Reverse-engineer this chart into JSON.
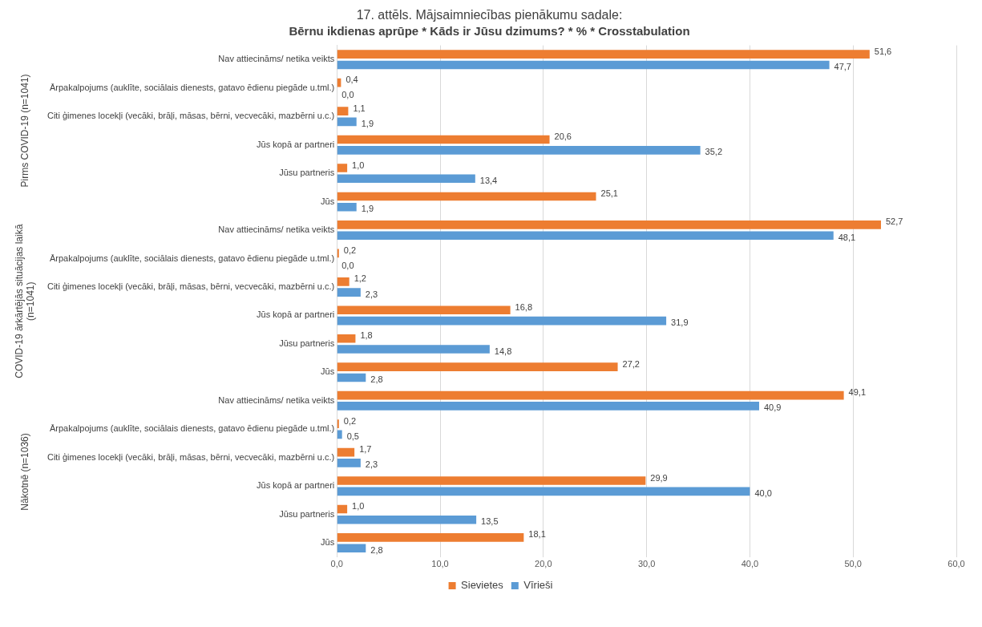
{
  "chart_data": {
    "type": "bar",
    "orientation": "horizontal",
    "title": "17. attēls. Mājsaimniecības pienākumu sadale:",
    "subtitle": "Bērnu ikdienas aprūpe * Kāds ir Jūsu dzimums? * % * Crosstabulation",
    "categories": [
      "Nav attiecināms/ netika veikts",
      "Ārpakalpojums (auklīte, sociālais dienests, gatavo ēdienu piegāde u.tml.)",
      "Citi ģimenes locekļi (vecāki, brāļi, māsas, bērni, vecvecāki, mazbērni u.c.)",
      "Jūs kopā ar partneri",
      "Jūsu partneris",
      "Jūs",
      "Nav attiecināms/ netika veikts",
      "Ārpakalpojums (auklīte, sociālais dienests, gatavo ēdienu piegāde u.tml.)",
      "Citi ģimenes locekļi (vecāki, brāļi, māsas, bērni, vecvecāki, mazbērni u.c.)",
      "Jūs kopā ar partneri",
      "Jūsu partneris",
      "Jūs",
      "Nav attiecināms/ netika veikts",
      "Ārpakalpojums (auklīte, sociālais dienests, gatavo ēdienu piegāde u.tml.)",
      "Citi ģimenes locekļi (vecāki, brāļi, māsas, bērni, vecvecāki, mazbērni u.c.)",
      "Jūs kopā ar partneri",
      "Jūsu partneris",
      "Jūs"
    ],
    "series": [
      {
        "name": "Sievietes",
        "color": "#ed7d31",
        "values": [
          51.6,
          0.4,
          1.1,
          20.6,
          1.0,
          25.1,
          52.7,
          0.2,
          1.2,
          16.8,
          1.8,
          27.2,
          49.1,
          0.2,
          1.7,
          29.9,
          1.0,
          18.1
        ],
        "value_labels": [
          "51,6",
          "0,4",
          "1,1",
          "20,6",
          "1,0",
          "25,1",
          "52,7",
          "0,2",
          "1,2",
          "16,8",
          "1,8",
          "27,2",
          "49,1",
          "0,2",
          "1,7",
          "29,9",
          "1,0",
          "18,1"
        ]
      },
      {
        "name": "Vīrieši",
        "color": "#5b9bd5",
        "values": [
          47.7,
          0.0,
          1.9,
          35.2,
          13.4,
          1.9,
          48.1,
          0.0,
          2.3,
          31.9,
          14.8,
          2.8,
          40.9,
          0.5,
          2.3,
          40.0,
          13.5,
          2.8
        ],
        "value_labels": [
          "47,7",
          "0,0",
          "1,9",
          "35,2",
          "13,4",
          "1,9",
          "48,1",
          "0,0",
          "2,3",
          "31,9",
          "14,8",
          "2,8",
          "40,9",
          "0,5",
          "2,3",
          "40,0",
          "13,5",
          "2,8"
        ]
      }
    ],
    "xlim": [
      0,
      60
    ],
    "xticks": [
      {
        "value": 0,
        "label": "0,0"
      },
      {
        "value": 10,
        "label": "10,0"
      },
      {
        "value": 20,
        "label": "20,0"
      },
      {
        "value": 30,
        "label": "30,0"
      },
      {
        "value": 40,
        "label": "40,0"
      },
      {
        "value": 50,
        "label": "50,0"
      },
      {
        "value": 60,
        "label": "60,0"
      }
    ],
    "grid": "x",
    "legend": "bottom",
    "annotations": [
      "Pirms COVID-19 (n=1041)",
      "COVID-19 ārkārtējās situācijas laikā (n=1041)",
      "Nākotnē (n=1036)"
    ]
  }
}
